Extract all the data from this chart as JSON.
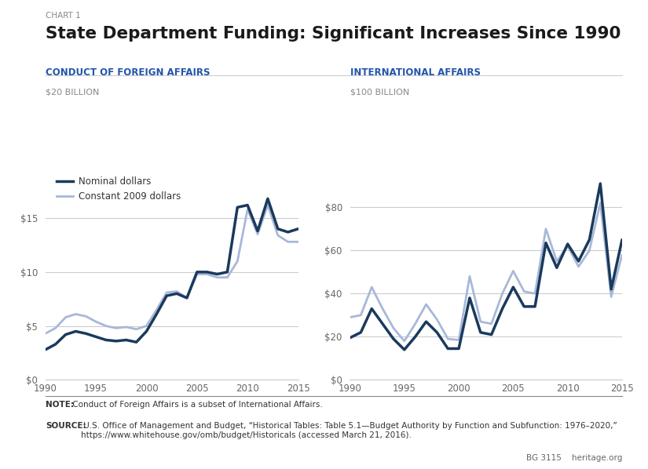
{
  "chart1_label": "CONDUCT OF FOREIGN AFFAIRS",
  "chart2_label": "INTERNATIONAL AFFAIRS",
  "chart1_ylabel": "$20 BILLION",
  "chart2_ylabel": "$100 BILLION",
  "title_prefix": "CHART 1",
  "title": "State Department Funding: Significant Increases Since 1990",
  "legend_nominal": "Nominal dollars",
  "legend_constant": "Constant 2009 dollars",
  "nominal_color": "#1a3a5c",
  "constant_color": "#a8b8d8",
  "background_color": "#ffffff",
  "note_bold": "NOTE:",
  "note_text": " Conduct of Foreign Affairs is a subset of International Affairs.",
  "source_bold": "SOURCE:",
  "source_text": " U.S. Office of Management and Budget, “Historical Tables: Table 5.1—Budget Authority by Function and Subfunction: 1976–2020,”\nhttps://www.whitehouse.gov/omb/budget/Historicals (accessed March 21, 2016).",
  "footer_right": "BG 3115    heritage.org",
  "years": [
    1990,
    1991,
    1992,
    1993,
    1994,
    1995,
    1996,
    1997,
    1998,
    1999,
    2000,
    2001,
    2002,
    2003,
    2004,
    2005,
    2006,
    2007,
    2008,
    2009,
    2010,
    2011,
    2012,
    2013,
    2014,
    2015
  ],
  "cfa_nominal": [
    2.8,
    3.3,
    4.2,
    4.5,
    4.3,
    4.0,
    3.7,
    3.6,
    3.7,
    3.5,
    4.5,
    6.1,
    7.8,
    8.0,
    7.6,
    10.0,
    10.0,
    9.8,
    10.0,
    16.0,
    16.2,
    13.8,
    16.8,
    14.0,
    13.7,
    14.0
  ],
  "cfa_constant": [
    4.3,
    4.8,
    5.8,
    6.1,
    5.9,
    5.4,
    5.0,
    4.8,
    4.9,
    4.7,
    5.0,
    6.5,
    8.1,
    8.2,
    7.6,
    9.8,
    9.8,
    9.5,
    9.5,
    11.0,
    15.8,
    13.5,
    16.2,
    13.4,
    12.8,
    12.8
  ],
  "ia_nominal": [
    19.5,
    22.0,
    33.0,
    26.0,
    19.0,
    14.0,
    20.0,
    27.0,
    22.0,
    14.5,
    14.5,
    38.0,
    22.0,
    21.0,
    33.0,
    43.0,
    34.0,
    34.0,
    63.5,
    52.0,
    63.0,
    55.0,
    65.0,
    91.0,
    42.0,
    65.0
  ],
  "ia_constant": [
    29.0,
    30.0,
    43.0,
    33.0,
    24.0,
    18.0,
    26.0,
    35.0,
    28.0,
    19.0,
    18.5,
    48.0,
    27.0,
    26.0,
    40.0,
    50.5,
    41.0,
    40.0,
    70.0,
    55.0,
    62.0,
    52.5,
    60.0,
    82.0,
    38.5,
    58.0
  ]
}
